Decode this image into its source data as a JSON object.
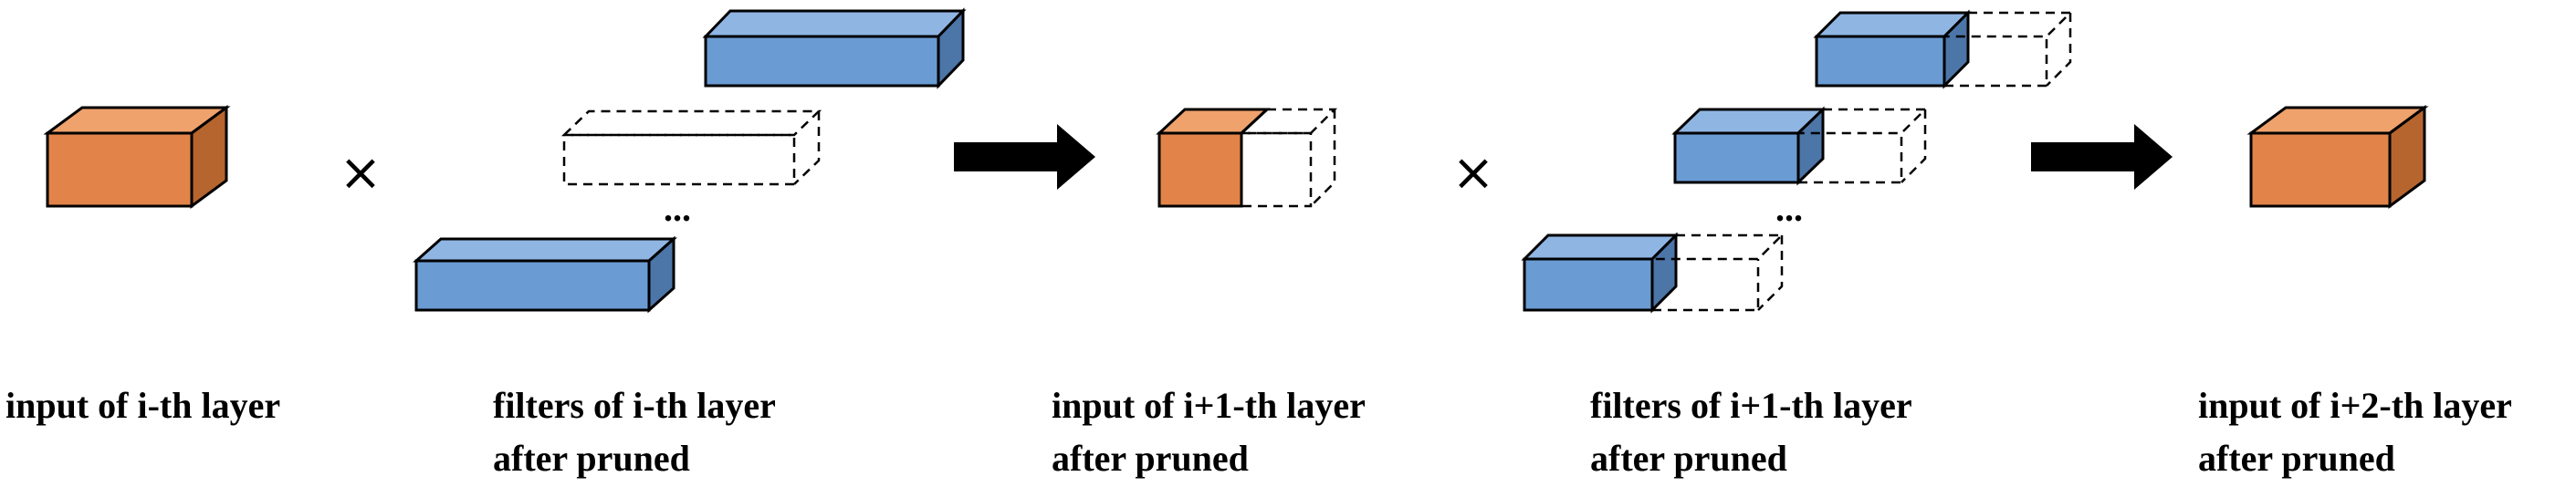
{
  "labels": {
    "input_i": "input of i-th layer",
    "filters_i_line1": "filters of i-th layer",
    "filters_i_line2": "after pruned",
    "input_i1_line1": "input of i+1-th layer",
    "input_i1_line2": "after pruned",
    "filters_i1_line1": "filters of i+1-th layer",
    "filters_i1_line2": "after pruned",
    "input_i2_line1": "input of i+2-th layer",
    "input_i2_line2": "after pruned"
  },
  "symbols": {
    "multiply": "×",
    "ellipsis": "..."
  },
  "colors": {
    "orange_front": "#E28449",
    "orange_top": "#EFA26C",
    "orange_side": "#B6652F",
    "blue_front": "#6A9BD3",
    "blue_top": "#8FB5E3",
    "blue_side": "#4C75A8",
    "stroke": "#000000"
  }
}
